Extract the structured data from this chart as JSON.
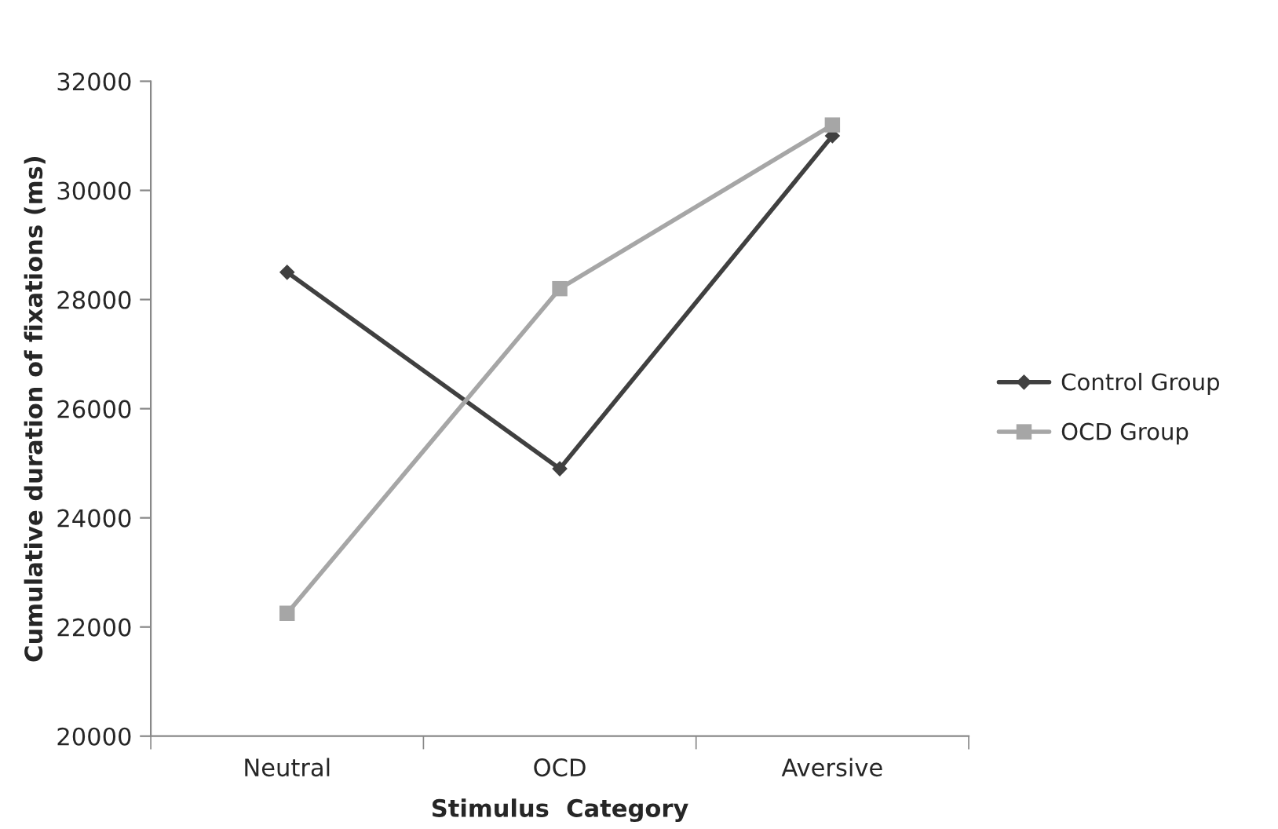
{
  "chart_data": {
    "type": "line",
    "xlabel": "Stimulus  Category",
    "ylabel": "Cumulative duration of fixations (ms)",
    "categories": [
      "Neutral",
      "OCD",
      "Aversive"
    ],
    "series": [
      {
        "name": "Control Group",
        "color": "#404040",
        "marker": "diamond",
        "values": [
          28500,
          24900,
          31000
        ]
      },
      {
        "name": "OCD Group",
        "color": "#a6a6a6",
        "marker": "square",
        "values": [
          22250,
          28200,
          31200
        ]
      }
    ],
    "ylim": [
      20000,
      32000
    ],
    "yticks": [
      20000,
      22000,
      24000,
      26000,
      28000,
      30000,
      32000
    ],
    "grid": false,
    "legend": "right",
    "line_style": "solid"
  }
}
